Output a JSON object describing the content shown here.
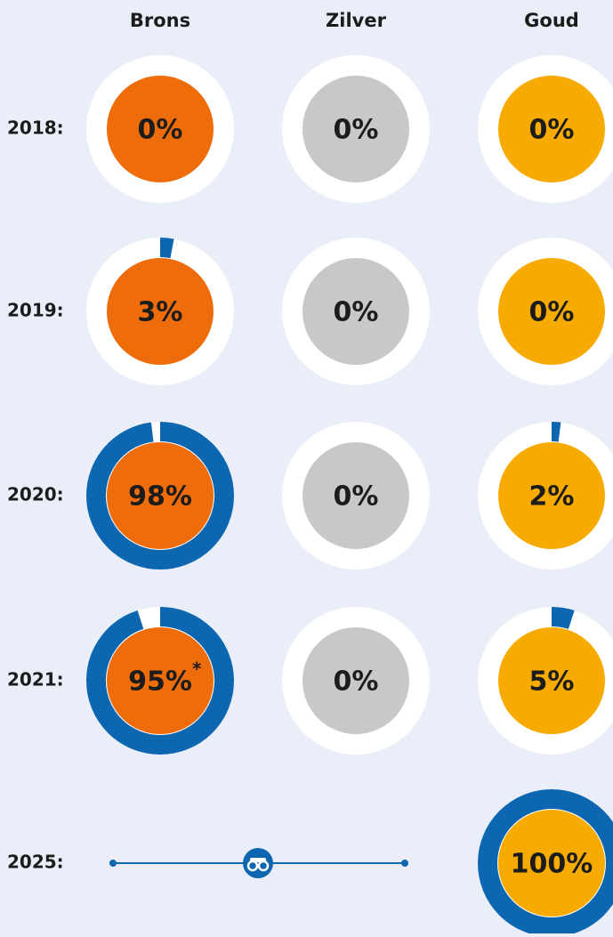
{
  "chart_data": {
    "type": "donut",
    "categories": [
      "2018:",
      "2019:",
      "2020:",
      "2021:",
      "2025:"
    ],
    "ylim": [
      0,
      100
    ],
    "ring_color": "#0c66b0",
    "series": [
      {
        "name": "Brons",
        "color": "#ee6c0a",
        "values": [
          0,
          3,
          98,
          95,
          null
        ],
        "value_labels": [
          "0%",
          "3%",
          "98%",
          "95%",
          null
        ]
      },
      {
        "name": "Zilver",
        "color": "#c8c8c8",
        "values": [
          0,
          0,
          0,
          0,
          null
        ],
        "value_labels": [
          "0%",
          "0%",
          "0%",
          "0%",
          null
        ]
      },
      {
        "name": "Goud",
        "color": "#f7ab00",
        "values": [
          0,
          0,
          2,
          5,
          100
        ],
        "value_labels": [
          "0%",
          "0%",
          "2%",
          "5%",
          "100%"
        ]
      }
    ],
    "annotations": [
      {
        "series": 0,
        "index": 3,
        "text": "*"
      }
    ]
  }
}
